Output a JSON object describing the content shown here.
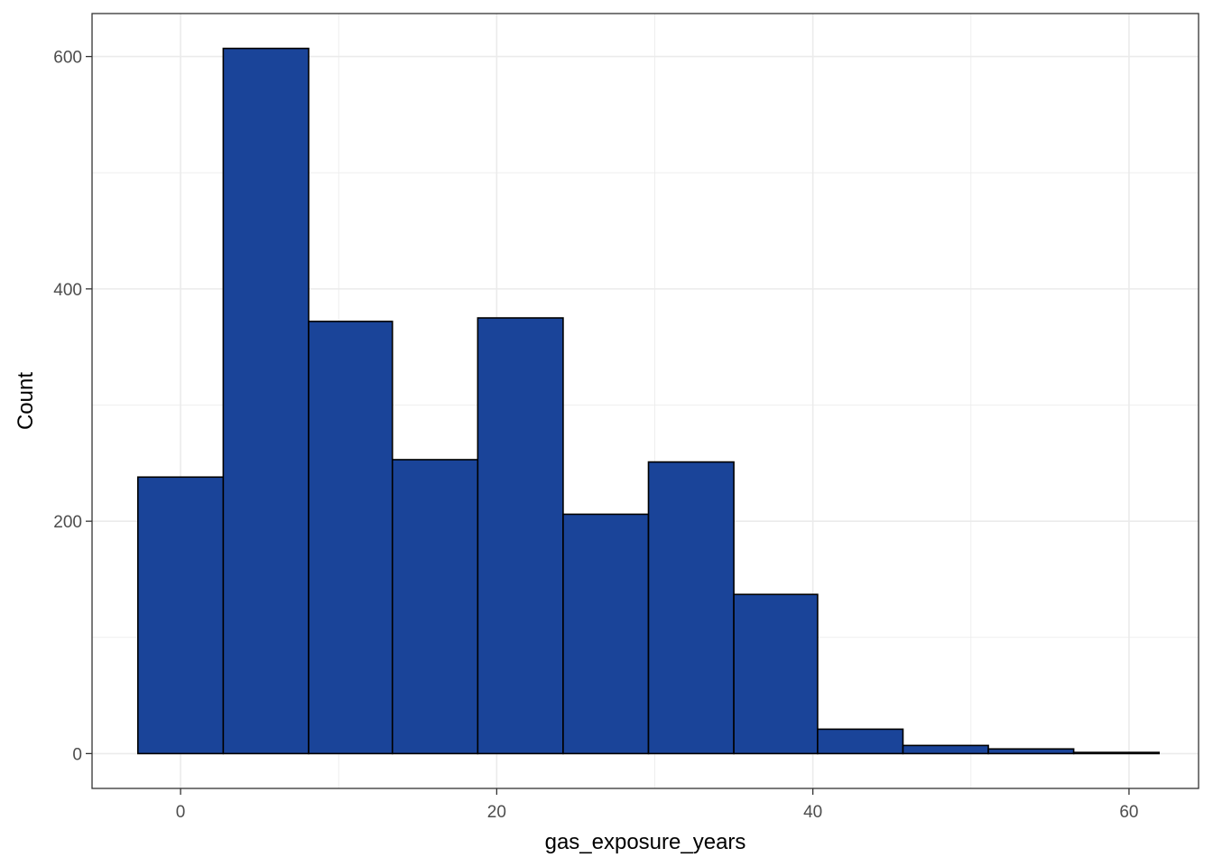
{
  "chart_data": {
    "type": "bar",
    "subtype": "histogram",
    "title": "",
    "xlabel": "gas_exposure_years",
    "ylabel": "Count",
    "xlim": [
      -5.6,
      64.4
    ],
    "ylim": [
      -30,
      637
    ],
    "x_ticks": [
      0,
      20,
      40,
      60
    ],
    "y_ticks": [
      0,
      200,
      400,
      600
    ],
    "grid": true,
    "theme": "bw",
    "bar_fill": "#1a4499",
    "bar_outline": "#000000",
    "bins": [
      {
        "x0": -2.7,
        "x1": 2.7,
        "count": 238
      },
      {
        "x0": 2.7,
        "x1": 8.1,
        "count": 607
      },
      {
        "x0": 8.1,
        "x1": 13.4,
        "count": 372
      },
      {
        "x0": 13.4,
        "x1": 18.8,
        "count": 253
      },
      {
        "x0": 18.8,
        "x1": 24.2,
        "count": 375
      },
      {
        "x0": 24.2,
        "x1": 29.6,
        "count": 206
      },
      {
        "x0": 29.6,
        "x1": 35.0,
        "count": 251
      },
      {
        "x0": 35.0,
        "x1": 40.3,
        "count": 137
      },
      {
        "x0": 40.3,
        "x1": 45.7,
        "count": 21
      },
      {
        "x0": 45.7,
        "x1": 51.1,
        "count": 7
      },
      {
        "x0": 51.1,
        "x1": 56.5,
        "count": 4
      },
      {
        "x0": 56.5,
        "x1": 61.9,
        "count": 1
      }
    ]
  }
}
